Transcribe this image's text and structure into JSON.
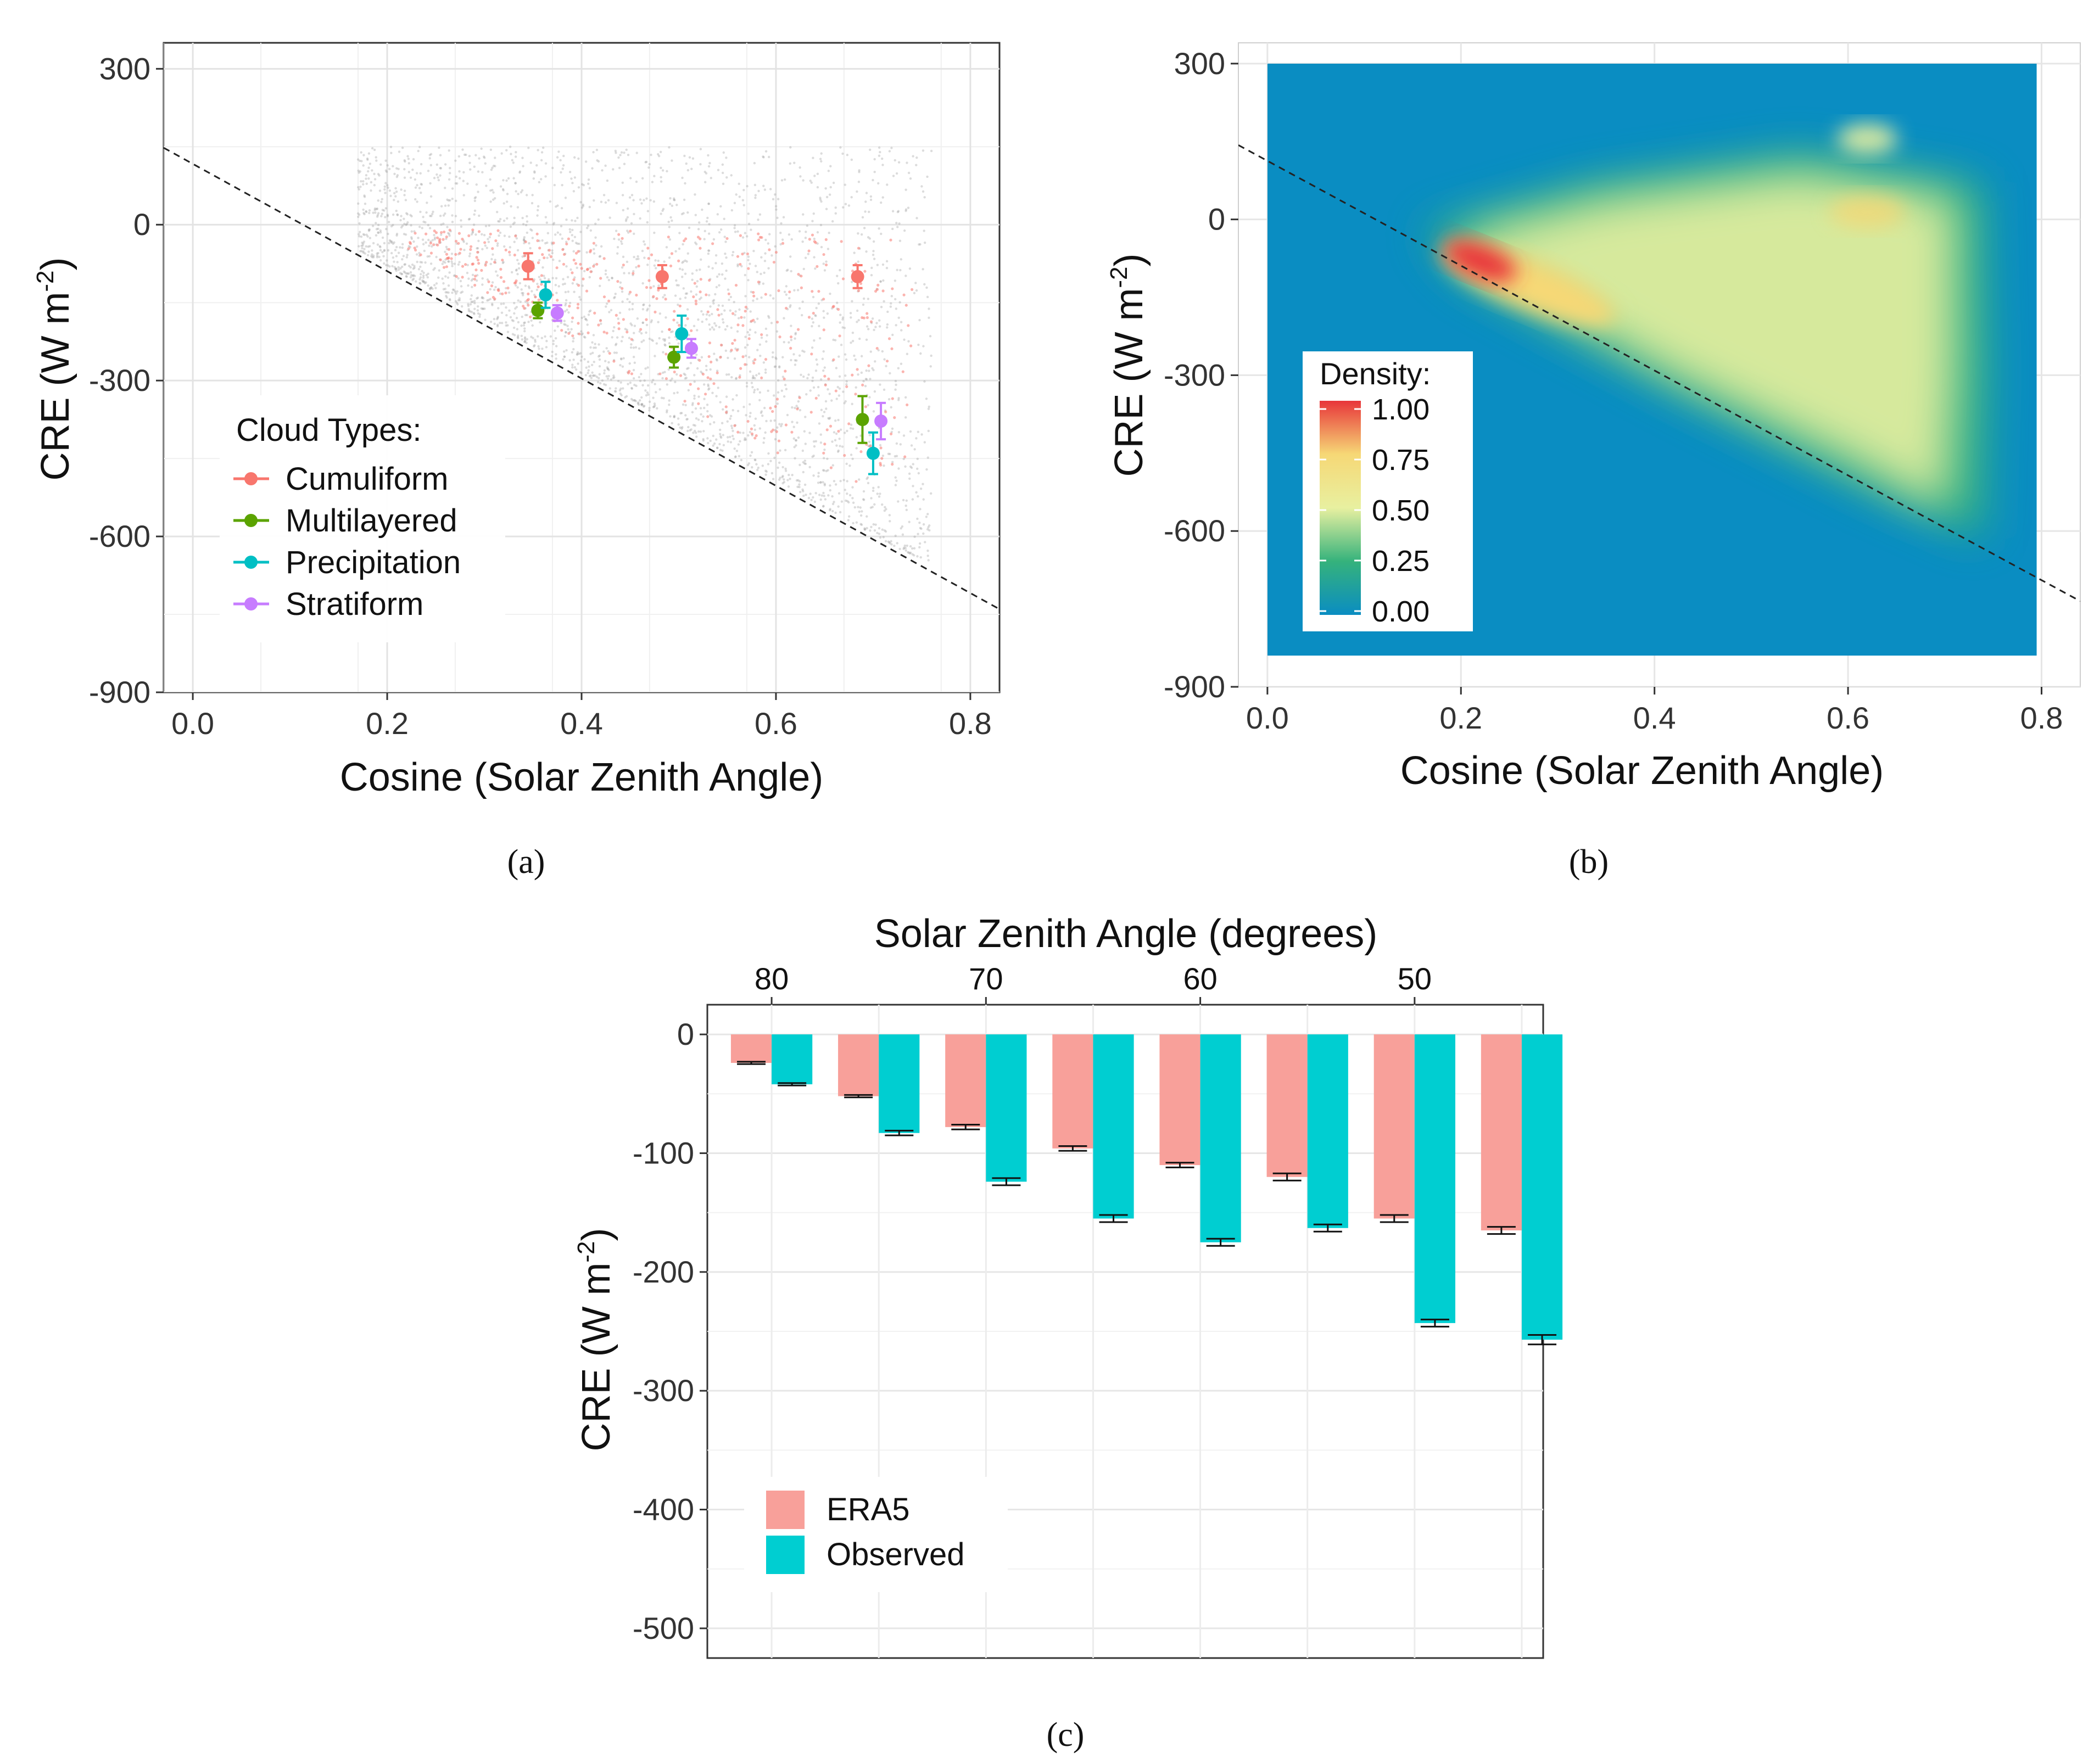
{
  "panels": {
    "a": "(a)",
    "b": "(b)",
    "c": "(c)"
  },
  "chart_data": [
    {
      "panel": "a",
      "type": "scatter",
      "xlabel": "Cosine (Solar Zenith Angle)",
      "ylabel": "CRE (W m",
      "ylabel_sup": "-2",
      "ylabel_close": ")",
      "xlim": [
        -0.03,
        0.83
      ],
      "ylim": [
        -900,
        350
      ],
      "xticks": [
        0.0,
        0.2,
        0.4,
        0.6,
        0.8
      ],
      "xtick_labels": [
        "0.0",
        "0.2",
        "0.4",
        "0.6",
        "0.8"
      ],
      "yticks": [
        300,
        0,
        -300,
        -600,
        -900
      ],
      "ytick_labels": [
        "300",
        "0",
        "-300",
        "-600",
        "-900"
      ],
      "grid": true,
      "background": {
        "xrange": [
          0.17,
          0.76
        ],
        "yrange": [
          -650,
          150
        ]
      },
      "reference_line": {
        "x": [
          -0.03,
          0.83
        ],
        "y": [
          148,
          -740
        ]
      },
      "legend": {
        "title": "Cloud Types:",
        "placement": "bottom-left"
      },
      "series": [
        {
          "name": "Cumuliform",
          "color": "#F8766D",
          "points": [
            {
              "x": 0.345,
              "y": -80,
              "err": 25
            },
            {
              "x": 0.483,
              "y": -100,
              "err": 22
            },
            {
              "x": 0.684,
              "y": -100,
              "err": 22
            }
          ]
        },
        {
          "name": "Multilayered",
          "color": "#5BA300",
          "points": [
            {
              "x": 0.355,
              "y": -165,
              "err": 15
            },
            {
              "x": 0.495,
              "y": -255,
              "err": 20
            },
            {
              "x": 0.689,
              "y": -375,
              "err": 45
            }
          ]
        },
        {
          "name": "Precipitation",
          "color": "#00BFC4",
          "points": [
            {
              "x": 0.363,
              "y": -135,
              "err": 25
            },
            {
              "x": 0.503,
              "y": -210,
              "err": 35
            },
            {
              "x": 0.7,
              "y": -440,
              "err": 40
            }
          ]
        },
        {
          "name": "Stratiform",
          "color": "#C77CFF",
          "points": [
            {
              "x": 0.375,
              "y": -170,
              "err": 15
            },
            {
              "x": 0.513,
              "y": -238,
              "err": 18
            },
            {
              "x": 0.708,
              "y": -378,
              "err": 35
            }
          ]
        }
      ]
    },
    {
      "panel": "b",
      "type": "heatmap",
      "xlabel": "Cosine (Solar Zenith Angle)",
      "ylabel": "CRE (W m",
      "ylabel_sup": "-2",
      "ylabel_close": ")",
      "xlim": [
        -0.03,
        0.84
      ],
      "ylim": [
        -900,
        340
      ],
      "xticks": [
        0.0,
        0.2,
        0.4,
        0.6,
        0.8
      ],
      "xtick_labels": [
        "0.0",
        "0.2",
        "0.4",
        "0.6",
        "0.8"
      ],
      "yticks": [
        300,
        0,
        -300,
        -600,
        -900
      ],
      "ytick_labels": [
        "300",
        "0",
        "-300",
        "-600",
        "-900"
      ],
      "grid": true,
      "extent": {
        "x": [
          0.0,
          0.795
        ],
        "y": [
          -840,
          300
        ]
      },
      "reference_line": {
        "x": [
          -0.03,
          0.84
        ],
        "y": [
          143,
          -735
        ]
      },
      "legend": {
        "title": "Density:",
        "placement": "bottom-left",
        "ticks": [
          "1.00",
          "0.75",
          "0.50",
          "0.25",
          "0.00"
        ]
      },
      "colors": {
        "low": "#0A8DC2",
        "mid_low": "#35B27C",
        "mid": "#E8F0A0",
        "mid_high": "#F6D876",
        "high": "#E8353A"
      }
    },
    {
      "panel": "c",
      "type": "bar",
      "xlabel": "Solar Zenith Angle (degrees)",
      "ylabel": "CRE (W m",
      "ylabel_sup": "-2",
      "ylabel_close": ")",
      "xlim": [
        83,
        44
      ],
      "ylim": [
        -525,
        25
      ],
      "xticks": [
        80,
        70,
        60,
        50
      ],
      "xtick_labels": [
        "80",
        "70",
        "60",
        "50"
      ],
      "yticks": [
        0,
        -100,
        -200,
        -300,
        -400,
        -500
      ],
      "ytick_labels": [
        "0",
        "-100",
        "-200",
        "-300",
        "-400",
        "-500"
      ],
      "grid": true,
      "legend": {
        "placement": "bottom-left"
      },
      "categories": [
        80,
        75,
        70,
        65,
        60,
        55,
        50,
        45
      ],
      "series": [
        {
          "name": "ERA5",
          "color": "#F8A09A",
          "values": [
            -24,
            -52,
            -78,
            -96,
            -110,
            -120,
            -155,
            -165
          ],
          "errors": [
            1,
            1,
            2,
            2,
            2,
            3,
            3,
            3
          ]
        },
        {
          "name": "Observed",
          "color": "#00CED1",
          "values": [
            -42,
            -83,
            -124,
            -155,
            -175,
            -163,
            -243,
            -257
          ],
          "errors": [
            1,
            2,
            3,
            3,
            3,
            3,
            3,
            4
          ]
        }
      ]
    }
  ]
}
